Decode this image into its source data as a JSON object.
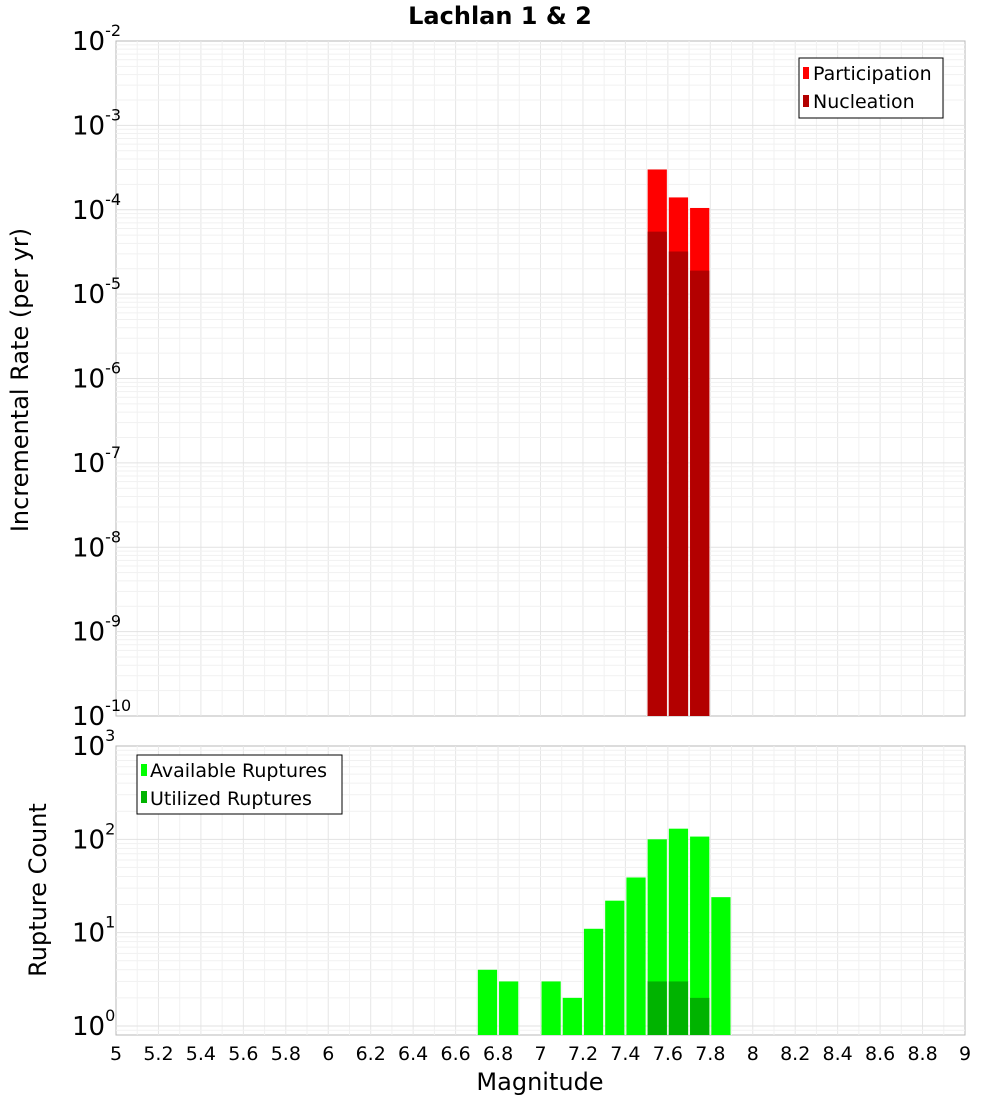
{
  "chart_data": [
    {
      "type": "bar",
      "title": "Lachlan 1 & 2",
      "ylabel": "Incremental Rate (per yr)",
      "xlabel": "",
      "xlim": [
        5,
        9
      ],
      "ylim": [
        1e-10,
        0.01
      ],
      "yscale": "log",
      "grid": true,
      "legend_position": "top-right",
      "bin_width": 0.1,
      "series": [
        {
          "name": "Participation",
          "color": "#ff0000",
          "x": [
            7.55,
            7.65,
            7.75
          ],
          "values": [
            0.0003,
            0.00014,
            0.000105
          ]
        },
        {
          "name": "Nucleation",
          "color": "#b30000",
          "x": [
            7.55,
            7.65,
            7.75
          ],
          "values": [
            5.5e-05,
            3.2e-05,
            1.9e-05
          ]
        }
      ]
    },
    {
      "type": "bar",
      "title": "",
      "ylabel": "Rupture Count",
      "xlabel": "Magnitude",
      "xlim": [
        5,
        9
      ],
      "ylim": [
        0.8,
        1000
      ],
      "yscale": "log",
      "grid": true,
      "legend_position": "top-left",
      "bin_width": 0.1,
      "series": [
        {
          "name": "Available Ruptures",
          "color": "#00ff00",
          "x": [
            6.75,
            6.85,
            7.05,
            7.15,
            7.25,
            7.35,
            7.45,
            7.55,
            7.65,
            7.75,
            7.85
          ],
          "values": [
            4,
            3,
            3,
            2,
            11,
            22,
            39,
            100,
            130,
            107,
            24
          ]
        },
        {
          "name": "Utilized Ruptures",
          "color": "#00b300",
          "x": [
            7.55,
            7.65,
            7.75
          ],
          "values": [
            3,
            3,
            2
          ]
        }
      ]
    }
  ],
  "x_tick_labels": [
    "5",
    "5.2",
    "5.4",
    "5.6",
    "5.8",
    "6",
    "6.2",
    "6.4",
    "6.6",
    "6.8",
    "7",
    "7.2",
    "7.4",
    "7.6",
    "7.8",
    "8",
    "8.2",
    "8.4",
    "8.6",
    "8.8",
    "9"
  ],
  "top_y_ticks": [
    {
      "base": "10",
      "exp": "-2"
    },
    {
      "base": "10",
      "exp": "-3"
    },
    {
      "base": "10",
      "exp": "-4"
    },
    {
      "base": "10",
      "exp": "-5"
    },
    {
      "base": "10",
      "exp": "-6"
    },
    {
      "base": "10",
      "exp": "-7"
    },
    {
      "base": "10",
      "exp": "-8"
    },
    {
      "base": "10",
      "exp": "-9"
    },
    {
      "base": "10",
      "exp": "-10"
    }
  ],
  "bottom_y_ticks": [
    {
      "base": "10",
      "exp": "3"
    },
    {
      "base": "10",
      "exp": "2"
    },
    {
      "base": "10",
      "exp": "1"
    },
    {
      "base": "10",
      "exp": "0"
    }
  ]
}
